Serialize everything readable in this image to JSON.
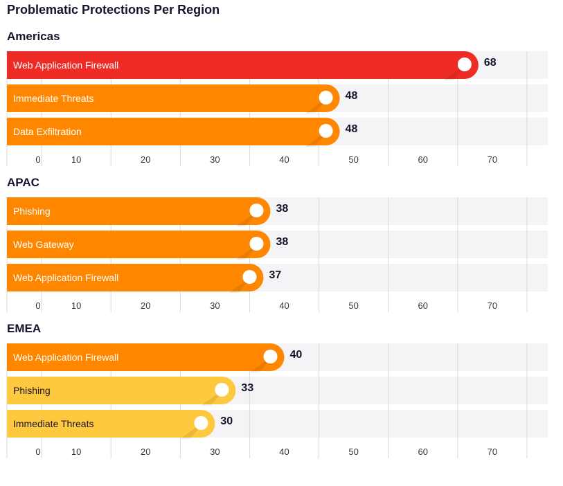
{
  "title": "Problematic Protections Per Region",
  "colors": {
    "red": "#ee2b24",
    "orange": "#ff8700",
    "yellow": "#ffc93f",
    "track": "#f4f4f6",
    "grid": "#d9d9de",
    "text_dark": "#14142b",
    "tick_text": "#333333",
    "knob": "#ffffff"
  },
  "chart_data": [
    {
      "type": "bar",
      "orientation": "horizontal",
      "title": "Americas",
      "categories": [
        "Web Application Firewall",
        "Immediate Threats",
        "Data Exfiltration"
      ],
      "values": [
        68,
        48,
        48
      ],
      "bar_colors": [
        "red",
        "orange",
        "orange"
      ],
      "xlim": [
        0,
        78
      ],
      "xticks": [
        0,
        10,
        20,
        30,
        40,
        50,
        60,
        70
      ]
    },
    {
      "type": "bar",
      "orientation": "horizontal",
      "title": "APAC",
      "categories": [
        "Phishing",
        "Web Gateway",
        "Web Application Firewall"
      ],
      "values": [
        38,
        38,
        37
      ],
      "bar_colors": [
        "orange",
        "orange",
        "orange"
      ],
      "xlim": [
        0,
        78
      ],
      "xticks": [
        0,
        10,
        20,
        30,
        40,
        50,
        60,
        70
      ]
    },
    {
      "type": "bar",
      "orientation": "horizontal",
      "title": "EMEA",
      "categories": [
        "Web Application Firewall",
        "Phishing",
        "Immediate Threats"
      ],
      "values": [
        40,
        33,
        30
      ],
      "bar_colors": [
        "orange",
        "yellow",
        "yellow"
      ],
      "xlim": [
        0,
        78
      ],
      "xticks": [
        0,
        10,
        20,
        30,
        40,
        50,
        60,
        70
      ]
    }
  ]
}
